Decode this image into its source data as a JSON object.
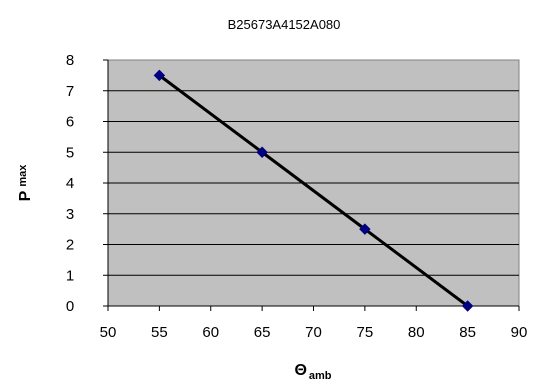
{
  "chart_data": {
    "type": "scatter",
    "title": "B25673A4152A080",
    "xlabel": "Θ",
    "xlabel_sub": "amb",
    "ylabel": "P",
    "ylabel_sub": "max",
    "xlim": [
      50,
      90
    ],
    "ylim": [
      0,
      8
    ],
    "xticks": [
      50,
      55,
      60,
      65,
      70,
      75,
      80,
      85,
      90
    ],
    "yticks": [
      0,
      1,
      2,
      3,
      4,
      5,
      6,
      7,
      8
    ],
    "grid": "horizontal",
    "legend": "none",
    "series": [
      {
        "x": [
          55,
          65,
          75,
          85
        ],
        "y": [
          7.5,
          5,
          2.5,
          0
        ],
        "marker": "diamond",
        "marker_color": "#000080",
        "line_color": "#000000"
      }
    ],
    "plot_background": "#c0c0c0"
  }
}
